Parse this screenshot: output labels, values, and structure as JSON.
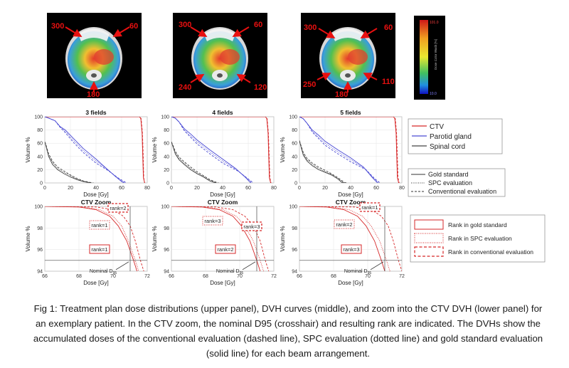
{
  "caption": "Fig 1: Treatment plan dose distributions (upper panel), DVH curves (middle), and zoom into the CTV DVH (lower panel) for an exemplary patient. In the CTV zoom, the nominal D95 (crosshair) and resulting rank are indicated. The DVHs show the accumulated doses of the conventional evaluation (dashed line), SPC evaluation (dotted line) and gold standard evaluation (solid line) for each beam arrangement.",
  "colorbar": {
    "label": "Dose Color Wash [%]",
    "top_value": "101.0",
    "bottom_value": "10.0",
    "top_color": "#d01818",
    "bottom_color": "#1010c0"
  },
  "dose_panels": [
    {
      "angles": [
        "300",
        "60",
        "180"
      ]
    },
    {
      "angles": [
        "300",
        "60",
        "240",
        "120"
      ]
    },
    {
      "angles": [
        "300",
        "60",
        "250",
        "110",
        "180"
      ]
    }
  ],
  "dvh_axes": {
    "xlabel": "Dose [Gy]",
    "ylabel": "Volume %",
    "xticks": [
      "0",
      "20",
      "40",
      "60",
      "80"
    ],
    "yticks": [
      "0",
      "20",
      "40",
      "60",
      "80",
      "100"
    ]
  },
  "zoom_axes": {
    "title": "CTV Zoom",
    "xlabel": "Dose [Gy]",
    "ylabel": "Volume %",
    "xticks": [
      "66",
      "68",
      "70",
      "72"
    ],
    "yticks": [
      "94",
      "96",
      "98",
      "100"
    ],
    "nominal_label": "Nominal D",
    "nominal_sub": "95"
  },
  "structure_legend": [
    "CTV",
    "Parotid gland",
    "Spinal cord"
  ],
  "style_legend": [
    "Gold standard",
    "SPC evaluation",
    "Conventional evaluation"
  ],
  "rank_legend": [
    "Rank in gold standard",
    "Rank in SPC evaluation",
    "Rank in conventional evaluation"
  ],
  "colors": {
    "ctv": "#d62728",
    "parotid": "#4a4ad4",
    "cord": "#444444"
  },
  "chart_data": [
    {
      "type": "line",
      "title": "3 fields",
      "xlabel": "Dose [Gy]",
      "ylabel": "Volume %",
      "xlim": [
        0,
        80
      ],
      "ylim": [
        0,
        100
      ],
      "grid": true,
      "series": [
        {
          "name": "CTV",
          "style": "solid",
          "x": [
            0,
            74,
            75,
            76,
            76.5,
            77,
            78
          ],
          "y": [
            100,
            100,
            97,
            75,
            40,
            8,
            0
          ]
        },
        {
          "name": "CTV",
          "style": "dotted",
          "x": [
            0,
            74,
            75,
            76,
            76.6,
            77.1,
            78
          ],
          "y": [
            100,
            100,
            97,
            75,
            40,
            8,
            0
          ]
        },
        {
          "name": "CTV",
          "style": "dashed",
          "x": [
            0,
            74.3,
            75.3,
            76.3,
            76.9,
            77.3,
            78
          ],
          "y": [
            100,
            100,
            97,
            75,
            40,
            8,
            0
          ]
        },
        {
          "name": "Parotid gland",
          "style": "solid",
          "x": [
            0,
            3,
            8,
            12,
            16,
            22,
            30,
            40,
            48,
            55,
            60,
            62
          ],
          "y": [
            100,
            98,
            94,
            85,
            80,
            68,
            52,
            36,
            22,
            10,
            2,
            0
          ]
        },
        {
          "name": "Parotid gland",
          "style": "dotted",
          "x": [
            0,
            3,
            8,
            12,
            16,
            22,
            30,
            40,
            49,
            56,
            61,
            63
          ],
          "y": [
            100,
            98,
            94,
            84,
            78,
            65,
            49,
            33,
            20,
            9,
            2,
            0
          ]
        },
        {
          "name": "Parotid gland",
          "style": "dashed",
          "x": [
            0,
            3,
            8,
            12,
            16,
            22,
            30,
            40,
            50,
            57,
            62,
            64
          ],
          "y": [
            100,
            98,
            94,
            84,
            76,
            62,
            46,
            30,
            18,
            8,
            2,
            0
          ]
        },
        {
          "name": "Spinal cord",
          "style": "solid",
          "x": [
            0,
            1,
            3,
            6,
            10,
            15,
            20,
            25,
            30,
            33,
            36
          ],
          "y": [
            62,
            55,
            40,
            28,
            20,
            14,
            9,
            5,
            2,
            1,
            0
          ]
        },
        {
          "name": "Spinal cord",
          "style": "dotted",
          "x": [
            0,
            1,
            3,
            6,
            10,
            15,
            20,
            25,
            30,
            34,
            37
          ],
          "y": [
            62,
            56,
            42,
            31,
            22,
            16,
            11,
            6,
            3,
            1,
            0
          ]
        },
        {
          "name": "Spinal cord",
          "style": "dashed",
          "x": [
            0,
            1,
            3,
            6,
            10,
            15,
            20,
            25,
            30,
            35,
            38
          ],
          "y": [
            62,
            57,
            44,
            33,
            24,
            18,
            12,
            7,
            3,
            1,
            0
          ]
        }
      ]
    },
    {
      "type": "line",
      "title": "4 fields",
      "xlabel": "Dose [Gy]",
      "ylabel": "Volume %",
      "xlim": [
        0,
        80
      ],
      "ylim": [
        0,
        100
      ],
      "grid": true,
      "series": [
        {
          "name": "CTV",
          "style": "solid",
          "x": [
            0,
            73.5,
            74.5,
            75.5,
            76,
            76.5,
            77.5
          ],
          "y": [
            100,
            100,
            97,
            75,
            40,
            8,
            0
          ]
        },
        {
          "name": "CTV",
          "style": "dotted",
          "x": [
            0,
            73.5,
            74.6,
            75.6,
            76.1,
            76.6,
            77.6
          ],
          "y": [
            100,
            100,
            97,
            75,
            40,
            8,
            0
          ]
        },
        {
          "name": "CTV",
          "style": "dashed",
          "x": [
            0,
            73.8,
            74.8,
            75.8,
            76.4,
            76.9,
            77.8
          ],
          "y": [
            100,
            100,
            97,
            75,
            40,
            8,
            0
          ]
        },
        {
          "name": "Parotid gland",
          "style": "solid",
          "x": [
            0,
            3,
            6,
            10,
            15,
            20,
            30,
            40,
            50,
            58,
            62
          ],
          "y": [
            100,
            98,
            92,
            82,
            74,
            65,
            50,
            36,
            22,
            8,
            0
          ]
        },
        {
          "name": "Parotid gland",
          "style": "dotted",
          "x": [
            0,
            3,
            6,
            10,
            15,
            20,
            30,
            40,
            51,
            59,
            63
          ],
          "y": [
            100,
            98,
            92,
            80,
            71,
            62,
            47,
            33,
            20,
            7,
            0
          ]
        },
        {
          "name": "Parotid gland",
          "style": "dashed",
          "x": [
            0,
            3,
            6,
            10,
            15,
            20,
            30,
            40,
            52,
            60,
            64
          ],
          "y": [
            100,
            98,
            92,
            79,
            69,
            59,
            44,
            30,
            18,
            6,
            0
          ]
        },
        {
          "name": "Spinal cord",
          "style": "solid",
          "x": [
            0,
            1,
            3,
            6,
            10,
            15,
            20,
            25,
            30,
            33,
            35
          ],
          "y": [
            62,
            56,
            44,
            35,
            28,
            20,
            14,
            9,
            3,
            1,
            0
          ]
        },
        {
          "name": "Spinal cord",
          "style": "dotted",
          "x": [
            0,
            1,
            3,
            6,
            10,
            15,
            20,
            25,
            30,
            34,
            36
          ],
          "y": [
            62,
            57,
            46,
            37,
            30,
            22,
            15,
            10,
            4,
            1,
            0
          ]
        },
        {
          "name": "Spinal cord",
          "style": "dashed",
          "x": [
            0,
            1,
            3,
            6,
            10,
            15,
            20,
            25,
            30,
            35,
            37
          ],
          "y": [
            62,
            58,
            48,
            39,
            32,
            24,
            17,
            11,
            5,
            1,
            0
          ]
        }
      ]
    },
    {
      "type": "line",
      "title": "5 fields",
      "xlabel": "Dose [Gy]",
      "ylabel": "Volume %",
      "xlim": [
        0,
        80
      ],
      "ylim": [
        0,
        100
      ],
      "grid": true,
      "series": [
        {
          "name": "CTV",
          "style": "solid",
          "x": [
            0,
            73.5,
            74.5,
            75.5,
            76,
            76.5,
            77.5
          ],
          "y": [
            100,
            100,
            97,
            75,
            40,
            8,
            0
          ]
        },
        {
          "name": "CTV",
          "style": "dotted",
          "x": [
            0,
            73.6,
            74.6,
            75.6,
            76.1,
            76.6,
            77.6
          ],
          "y": [
            100,
            100,
            97,
            75,
            40,
            8,
            0
          ]
        },
        {
          "name": "CTV",
          "style": "dashed",
          "x": [
            0,
            73.9,
            74.9,
            75.9,
            76.5,
            77,
            77.9
          ],
          "y": [
            100,
            100,
            97,
            75,
            40,
            8,
            0
          ]
        },
        {
          "name": "Parotid gland",
          "style": "solid",
          "x": [
            0,
            3,
            6,
            10,
            15,
            20,
            30,
            40,
            50,
            57,
            61
          ],
          "y": [
            100,
            97,
            90,
            80,
            72,
            63,
            50,
            38,
            24,
            8,
            0
          ]
        },
        {
          "name": "Parotid gland",
          "style": "dotted",
          "x": [
            0,
            3,
            6,
            10,
            15,
            20,
            30,
            40,
            51,
            58,
            62
          ],
          "y": [
            100,
            97,
            90,
            78,
            69,
            60,
            47,
            35,
            22,
            7,
            0
          ]
        },
        {
          "name": "Parotid gland",
          "style": "dashed",
          "x": [
            0,
            3,
            6,
            10,
            15,
            20,
            30,
            40,
            52,
            59,
            63
          ],
          "y": [
            100,
            97,
            90,
            77,
            67,
            57,
            44,
            32,
            20,
            6,
            0
          ]
        },
        {
          "name": "Spinal cord",
          "style": "solid",
          "x": [
            0,
            1,
            3,
            6,
            10,
            15,
            20,
            25,
            30,
            33,
            35
          ],
          "y": [
            64,
            56,
            42,
            33,
            26,
            20,
            16,
            12,
            6,
            1,
            0
          ]
        },
        {
          "name": "Spinal cord",
          "style": "dotted",
          "x": [
            0,
            1,
            3,
            6,
            10,
            15,
            20,
            25,
            30,
            34,
            36
          ],
          "y": [
            64,
            57,
            44,
            35,
            28,
            22,
            17,
            13,
            7,
            1,
            0
          ]
        },
        {
          "name": "Spinal cord",
          "style": "dashed",
          "x": [
            0,
            1,
            3,
            6,
            10,
            15,
            20,
            25,
            30,
            35,
            37
          ],
          "y": [
            64,
            58,
            46,
            37,
            30,
            24,
            19,
            14,
            8,
            1,
            0
          ]
        }
      ]
    },
    {
      "type": "line",
      "title": "CTV Zoom",
      "xlabel": "Dose [Gy]",
      "ylabel": "Volume %",
      "xlim": [
        66,
        72
      ],
      "ylim": [
        94,
        100
      ],
      "grid": true,
      "nominal_d95": {
        "x": 71,
        "y": 95
      },
      "ranks": {
        "gold": "rank=1",
        "spc": "rank=1",
        "conventional": "rank=2"
      },
      "series": [
        {
          "name": "CTV",
          "style": "solid",
          "x": [
            66,
            68,
            69,
            69.8,
            70.3,
            70.8,
            71.2,
            71.4
          ],
          "y": [
            100,
            99.95,
            99.7,
            99.1,
            98.2,
            96.8,
            95,
            94
          ]
        },
        {
          "name": "CTV",
          "style": "dotted",
          "x": [
            66,
            68.2,
            69.2,
            70,
            70.5,
            70.9,
            71.3,
            71.5
          ],
          "y": [
            100,
            99.95,
            99.7,
            99.1,
            98.2,
            96.8,
            95,
            94
          ]
        },
        {
          "name": "CTV",
          "style": "dashed",
          "x": [
            66,
            69,
            70,
            70.6,
            71,
            71.3,
            71.6,
            71.8
          ],
          "y": [
            100,
            99.95,
            99.7,
            99.1,
            98.2,
            96.8,
            95,
            94
          ]
        }
      ]
    },
    {
      "type": "line",
      "title": "CTV Zoom",
      "xlabel": "Dose [Gy]",
      "ylabel": "Volume %",
      "xlim": [
        66,
        72
      ],
      "ylim": [
        94,
        100
      ],
      "grid": true,
      "nominal_d95": {
        "x": 71,
        "y": 95
      },
      "ranks": {
        "gold": "rank=2",
        "spc": "rank=3",
        "conventional": "rank=3"
      },
      "series": [
        {
          "name": "CTV",
          "style": "solid",
          "x": [
            66,
            67.8,
            68.8,
            69.6,
            70.1,
            70.6,
            71,
            71.2
          ],
          "y": [
            100,
            99.95,
            99.7,
            99.1,
            98.2,
            96.8,
            95,
            94
          ]
        },
        {
          "name": "CTV",
          "style": "dotted",
          "x": [
            66,
            68,
            69,
            69.8,
            70.3,
            70.8,
            71.2,
            71.4
          ],
          "y": [
            100,
            99.95,
            99.7,
            99.1,
            98.2,
            96.8,
            95,
            94
          ]
        },
        {
          "name": "CTV",
          "style": "dashed",
          "x": [
            66,
            68.6,
            69.6,
            70.3,
            70.8,
            71.2,
            71.5,
            71.7
          ],
          "y": [
            100,
            99.95,
            99.7,
            99.1,
            98.2,
            96.8,
            95,
            94
          ]
        }
      ]
    },
    {
      "type": "line",
      "title": "CTV Zoom",
      "xlabel": "Dose [Gy]",
      "ylabel": "Volume %",
      "xlim": [
        66,
        72
      ],
      "ylim": [
        94,
        100
      ],
      "grid": true,
      "nominal_d95": {
        "x": 71,
        "y": 95
      },
      "ranks": {
        "gold": "rank=3",
        "spc": "rank=2",
        "conventional": "rank=1"
      },
      "series": [
        {
          "name": "CTV",
          "style": "solid",
          "x": [
            66,
            67.6,
            68.6,
            69.4,
            69.9,
            70.4,
            70.8,
            71
          ],
          "y": [
            100,
            99.95,
            99.7,
            99.1,
            98.2,
            96.8,
            95,
            94
          ]
        },
        {
          "name": "CTV",
          "style": "dotted",
          "x": [
            66,
            67.9,
            68.9,
            69.7,
            70.2,
            70.7,
            71.1,
            71.3
          ],
          "y": [
            100,
            99.95,
            99.7,
            99.1,
            98.2,
            96.8,
            95,
            94
          ]
        },
        {
          "name": "CTV",
          "style": "dashed",
          "x": [
            66,
            69.2,
            70.2,
            70.8,
            71.2,
            71.5,
            71.8,
            72
          ],
          "y": [
            100,
            99.95,
            99.7,
            99.1,
            98.2,
            96.8,
            95,
            94
          ]
        }
      ]
    }
  ]
}
